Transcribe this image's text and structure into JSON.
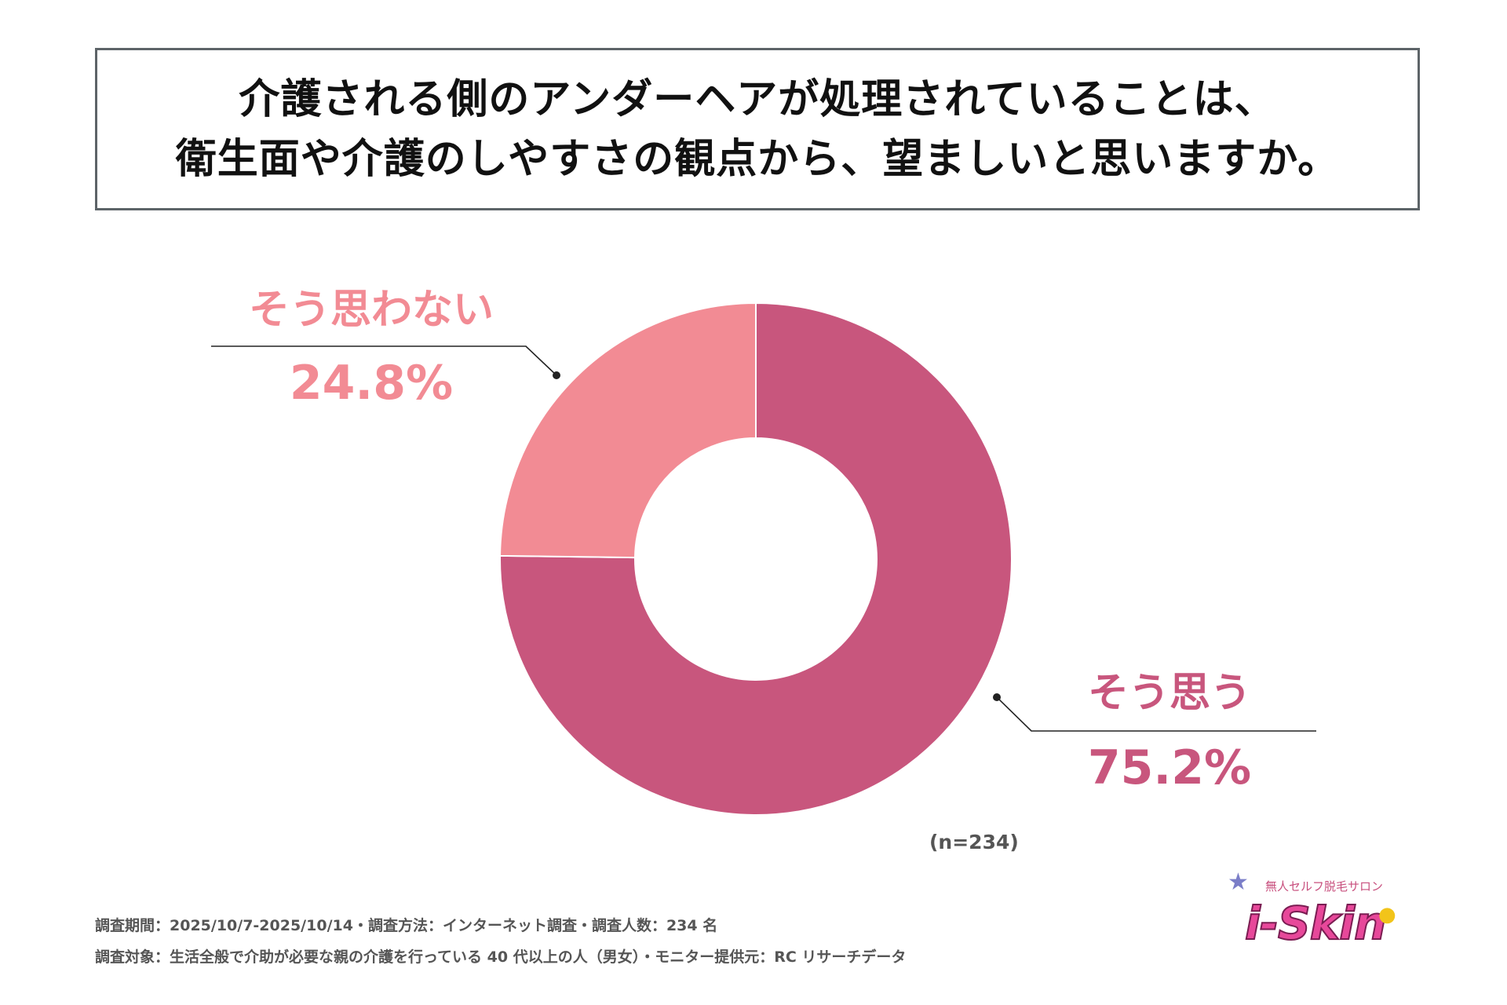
{
  "title": {
    "line1": "介護される側のアンダーヘアが処理されていることは、",
    "line2": "衛生面や介護のしやすさの観点から、望ましいと思いますか。"
  },
  "chart_data": {
    "type": "pie",
    "donut": true,
    "slices": [
      {
        "label": "そう思う",
        "value": 75.2,
        "value_label": "75.2%",
        "color": "#c8567d"
      },
      {
        "label": "そう思わない",
        "value": 24.8,
        "value_label": "24.8%",
        "color": "#f28b94"
      }
    ]
  },
  "sample_note": "(n=234)",
  "footnotes": [
    "調査期間：2025/10/7-2025/10/14・調査方法：インターネット調査・調査人数：234 名",
    "調査対象：生活全般で介助が必要な親の介護を行っている 40 代以上の人（男女）・モニター提供元：RC リサーチデータ"
  ],
  "logo": {
    "tagline": "無人セルフ脱毛サロン",
    "wordmark": "i-Skin"
  }
}
